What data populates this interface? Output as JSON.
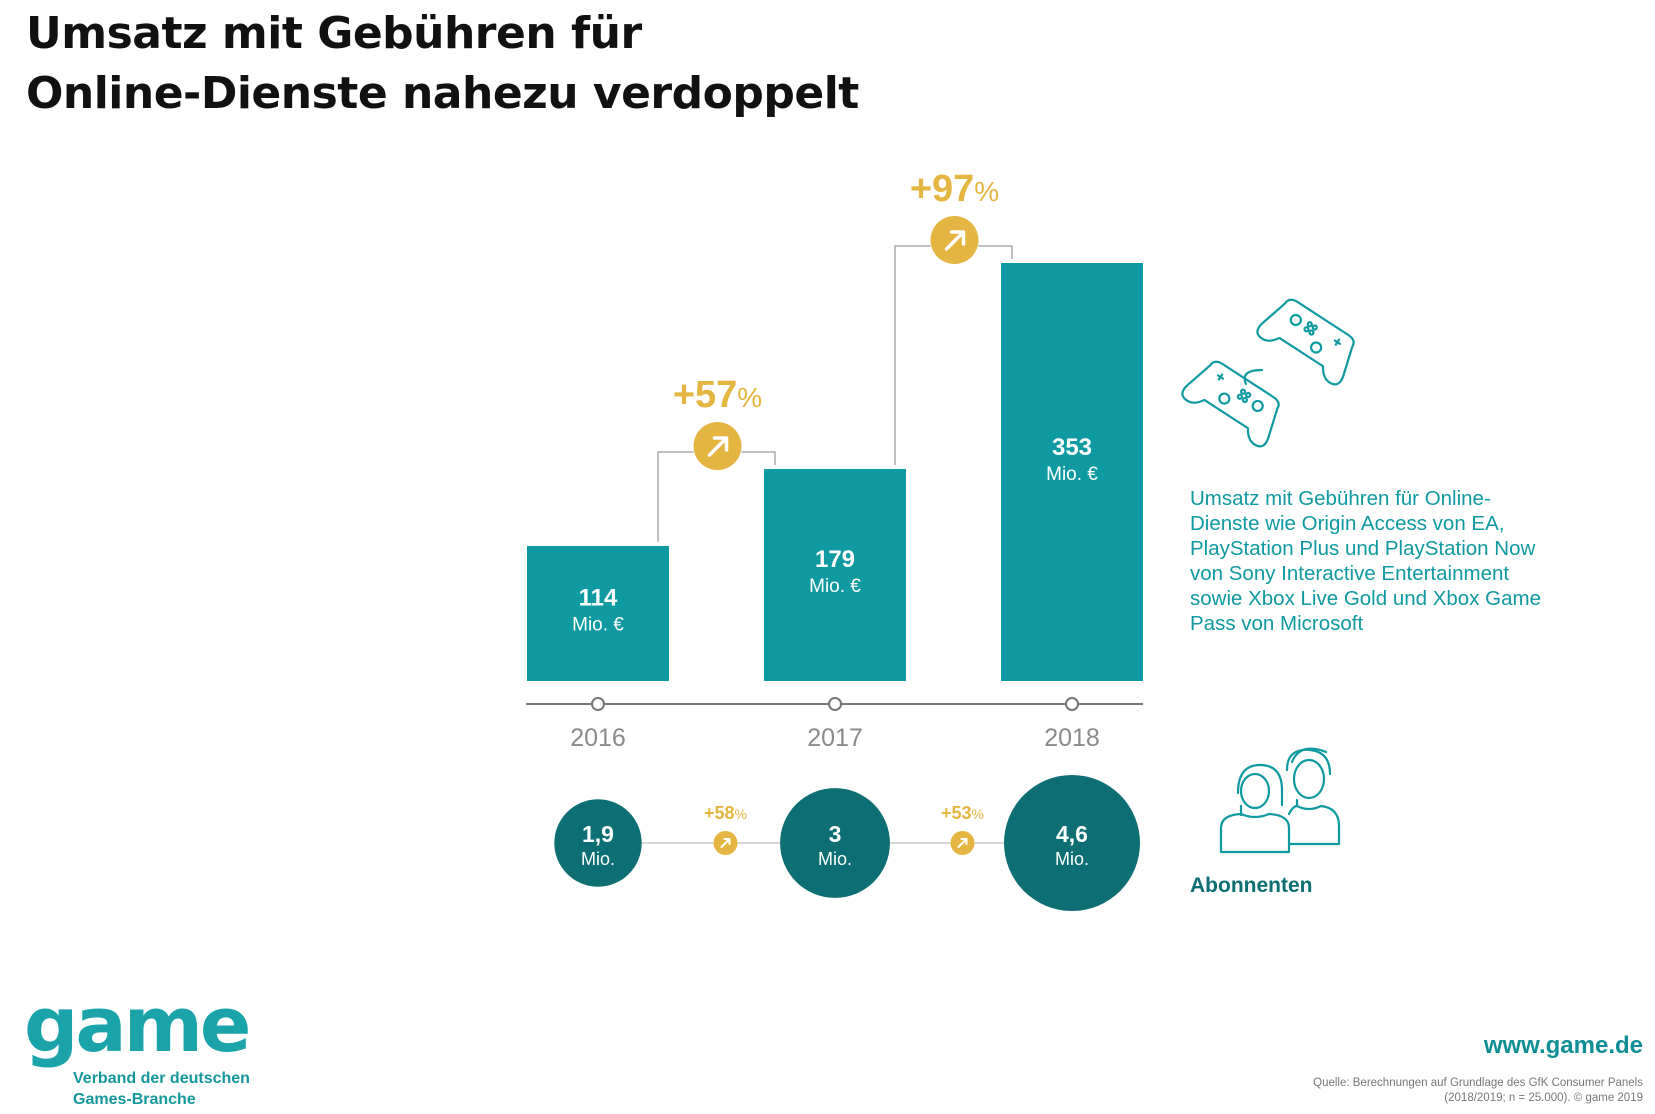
{
  "title": {
    "line1": "Umsatz mit Gebühren für",
    "line2": "Online-Dienste nahezu verdoppelt"
  },
  "description": {
    "lines": [
      "Umsatz mit Gebühren für Online-",
      "Dienste wie Origin Access von EA,",
      "PlayStation Plus und PlayStation Now",
      "von Sony Interactive Entertainment",
      "sowie Xbox Live Gold und Xbox Game",
      "Pass von Microsoft"
    ]
  },
  "subscribers_label": "Abonnenten",
  "logo": {
    "word": "game",
    "sub1": "Verband der deutschen",
    "sub2": "Games-Branche"
  },
  "website": "www.game.de",
  "source": {
    "line1": "Quelle: Berechnungen auf Grundlage des GfK Consumer Panels",
    "line2": "(2018/2019; n = 25.000). © game 2019"
  },
  "icons": [
    "controller-icon",
    "people-icon",
    "arrow-up-right-icon"
  ],
  "colors": {
    "bar": "#0e9aa0",
    "circle": "#0d6e73",
    "accent": "#e4b540",
    "axis": "#777777",
    "year_text": "#8a8a8a"
  },
  "chart_data": [
    {
      "type": "bar",
      "categories": [
        "2016",
        "2017",
        "2018"
      ],
      "values": [
        114,
        179,
        353
      ],
      "value_labels": [
        "114",
        "179",
        "353"
      ],
      "unit": "Mio. €",
      "ylim": [
        0,
        353
      ],
      "grid": false,
      "growth": [
        {
          "from": "2016",
          "to": "2017",
          "number": "+57",
          "suffix": "%"
        },
        {
          "from": "2017",
          "to": "2018",
          "number": "+97",
          "suffix": "%"
        }
      ]
    },
    {
      "type": "bubble",
      "categories": [
        "2016",
        "2017",
        "2018"
      ],
      "values": [
        1.9,
        3,
        4.6
      ],
      "value_labels": [
        "1,9",
        "3",
        "4,6"
      ],
      "unit": "Mio.",
      "growth": [
        {
          "from": "2016",
          "to": "2017",
          "number": "+58",
          "suffix": "%"
        },
        {
          "from": "2017",
          "to": "2018",
          "number": "+53",
          "suffix": "%"
        }
      ]
    }
  ]
}
